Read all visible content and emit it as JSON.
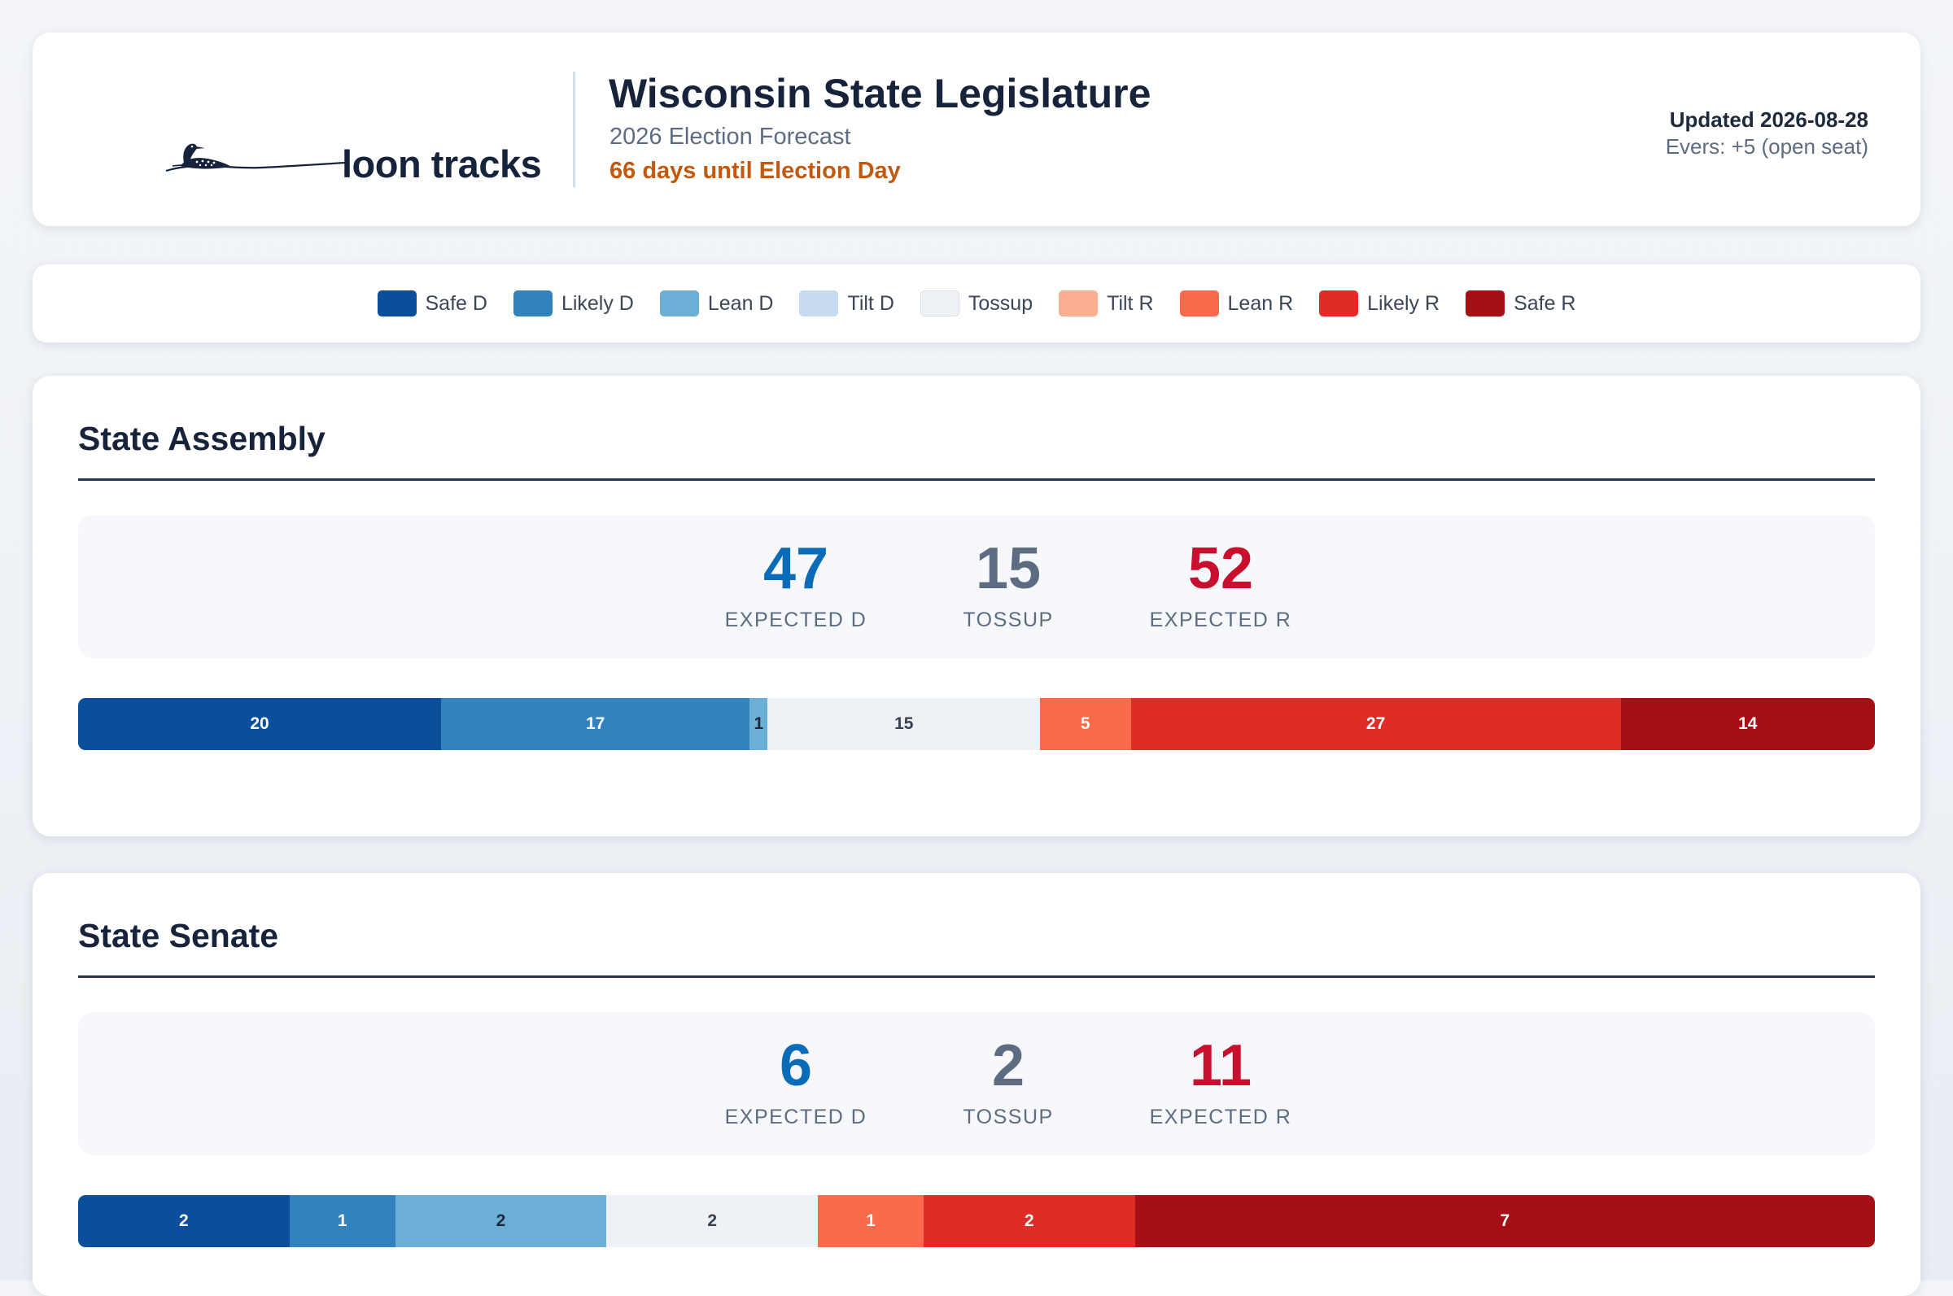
{
  "header": {
    "logo_text": "loon tracks",
    "title": "Wisconsin State Legislature",
    "subtitle": "2026 Election Forecast",
    "countdown": "66 days until Election Day",
    "updated": "Updated 2026-08-28",
    "note": "Evers: +5 (open seat)"
  },
  "legend": [
    {
      "label": "Safe D",
      "color": "#0b4f9c",
      "text_color": "#ffffff",
      "icon": "safe-d-swatch"
    },
    {
      "label": "Likely D",
      "color": "#3182bd",
      "text_color": "#ffffff",
      "icon": "likely-d-swatch"
    },
    {
      "label": "Lean D",
      "color": "#6baed6",
      "text_color": "#1e293b",
      "icon": "lean-d-swatch"
    },
    {
      "label": "Tilt D",
      "color": "#c6dbef",
      "text_color": "#1e293b",
      "icon": "tilt-d-swatch"
    },
    {
      "label": "Tossup",
      "color": "#eef2f7",
      "text_color": "#374151",
      "icon": "tossup-swatch"
    },
    {
      "label": "Tilt R",
      "color": "#fcae91",
      "text_color": "#1e293b",
      "icon": "tilt-r-swatch"
    },
    {
      "label": "Lean R",
      "color": "#fb6a4a",
      "text_color": "#ffffff",
      "icon": "lean-r-swatch"
    },
    {
      "label": "Likely R",
      "color": "#de2d26",
      "text_color": "#ffffff",
      "icon": "likely-r-swatch"
    },
    {
      "label": "Safe R",
      "color": "#a50f15",
      "text_color": "#ffffff",
      "icon": "safe-r-swatch"
    }
  ],
  "colors": {
    "dem": "#0a6bb8",
    "tossup": "#5d6c81",
    "rep": "#c8102e"
  },
  "chambers": [
    {
      "key": "assembly",
      "title": "State Assembly",
      "expected_d": "47",
      "expected_d_label": "EXPECTED D",
      "tossup": "15",
      "tossup_label": "TOSSUP",
      "expected_r": "52",
      "expected_r_label": "EXPECTED R",
      "segments": [
        {
          "category": "Safe D",
          "seats": 20
        },
        {
          "category": "Likely D",
          "seats": 17
        },
        {
          "category": "Lean D",
          "seats": 1
        },
        {
          "category": "Tossup",
          "seats": 15
        },
        {
          "category": "Lean R",
          "seats": 5
        },
        {
          "category": "Likely R",
          "seats": 27
        },
        {
          "category": "Safe R",
          "seats": 14
        }
      ]
    },
    {
      "key": "senate",
      "title": "State Senate",
      "expected_d": "6",
      "expected_d_label": "EXPECTED D",
      "tossup": "2",
      "tossup_label": "TOSSUP",
      "expected_r": "11",
      "expected_r_label": "EXPECTED R",
      "segments": [
        {
          "category": "Safe D",
          "seats": 2
        },
        {
          "category": "Likely D",
          "seats": 1
        },
        {
          "category": "Lean D",
          "seats": 2
        },
        {
          "category": "Tossup",
          "seats": 2
        },
        {
          "category": "Lean R",
          "seats": 1
        },
        {
          "category": "Likely R",
          "seats": 2
        },
        {
          "category": "Safe R",
          "seats": 7
        }
      ]
    }
  ]
}
